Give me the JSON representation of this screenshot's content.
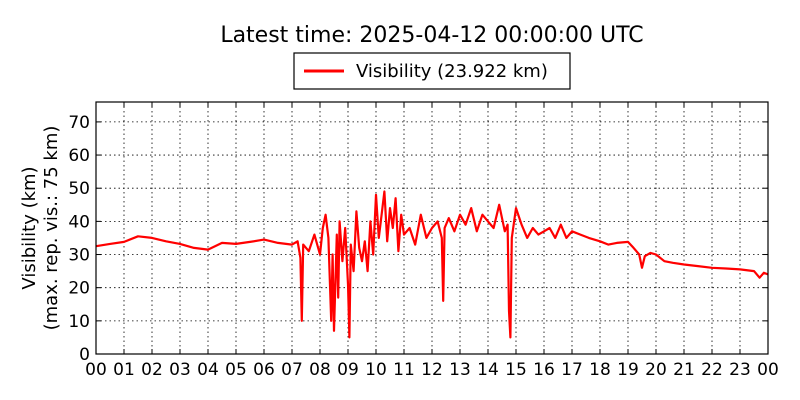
{
  "chart_data": {
    "type": "line",
    "title": "Latest time: 2025-04-12 00:00:00 UTC",
    "xlabel": "",
    "ylabel": [
      "Visibility (km)",
      "(max. rep. vis.: 75 km)"
    ],
    "xlim": [
      0,
      24
    ],
    "ylim": [
      0,
      76
    ],
    "grid": true,
    "legend_position": "top-center, above plot",
    "x_tick_labels": [
      "00",
      "01",
      "02",
      "03",
      "04",
      "05",
      "06",
      "07",
      "08",
      "09",
      "10",
      "11",
      "12",
      "13",
      "14",
      "15",
      "16",
      "17",
      "18",
      "19",
      "20",
      "21",
      "22",
      "23",
      "00"
    ],
    "y_ticks": [
      0,
      10,
      20,
      30,
      40,
      50,
      60,
      70
    ],
    "series": [
      {
        "name": "Visibility (23.922 km)",
        "color": "#ff0000",
        "x_hours": [
          0,
          0.5,
          1.0,
          1.5,
          2.0,
          2.5,
          3.0,
          3.5,
          4.0,
          4.5,
          5.0,
          5.5,
          6.0,
          6.5,
          7.0,
          7.2,
          7.3,
          7.35,
          7.4,
          7.6,
          7.8,
          8.0,
          8.1,
          8.2,
          8.3,
          8.4,
          8.45,
          8.5,
          8.6,
          8.65,
          8.7,
          8.8,
          8.9,
          9.0,
          9.05,
          9.1,
          9.2,
          9.3,
          9.4,
          9.5,
          9.6,
          9.7,
          9.8,
          9.9,
          10.0,
          10.1,
          10.2,
          10.3,
          10.4,
          10.5,
          10.6,
          10.7,
          10.8,
          10.9,
          11.0,
          11.2,
          11.4,
          11.6,
          11.8,
          12.0,
          12.2,
          12.35,
          12.4,
          12.45,
          12.6,
          12.8,
          13.0,
          13.2,
          13.4,
          13.6,
          13.8,
          14.0,
          14.2,
          14.4,
          14.6,
          14.7,
          14.75,
          14.8,
          14.85,
          14.9,
          15.0,
          15.2,
          15.4,
          15.6,
          15.8,
          16.0,
          16.2,
          16.4,
          16.6,
          16.8,
          17.0,
          17.3,
          17.6,
          18.0,
          18.3,
          18.6,
          19.0,
          19.2,
          19.4,
          19.5,
          19.6,
          19.8,
          20.0,
          20.3,
          20.6,
          21.0,
          21.5,
          22.0,
          22.5,
          23.0,
          23.5,
          23.7,
          23.85,
          24.0
        ],
        "values": [
          32.5,
          33.2,
          33.8,
          35.5,
          35.0,
          34.0,
          33.2,
          32.0,
          31.5,
          33.5,
          33.2,
          33.8,
          34.5,
          33.5,
          33.0,
          34.0,
          29.0,
          10.0,
          33.0,
          31.0,
          36.0,
          30.0,
          38.0,
          42.0,
          35.0,
          10.0,
          30.0,
          7.0,
          36.0,
          17.0,
          40.0,
          28.0,
          38.0,
          21.0,
          5.0,
          33.0,
          25.0,
          43.0,
          32.0,
          28.0,
          34.0,
          25.0,
          40.0,
          30.0,
          48.0,
          35.0,
          42.0,
          49.0,
          34.0,
          44.0,
          38.0,
          47.0,
          31.0,
          42.0,
          36.0,
          38.0,
          33.0,
          42.0,
          35.0,
          38.0,
          40.0,
          35.0,
          16.0,
          38.0,
          41.0,
          37.0,
          42.0,
          39.0,
          44.0,
          37.0,
          42.0,
          40.0,
          38.0,
          45.0,
          37.0,
          39.0,
          13.0,
          5.0,
          35.0,
          38.0,
          44.0,
          39.0,
          35.0,
          38.0,
          36.0,
          37.0,
          38.0,
          35.0,
          39.0,
          35.0,
          37.0,
          36.0,
          35.0,
          34.0,
          33.0,
          33.5,
          33.8,
          32.0,
          30.0,
          26.0,
          29.5,
          30.5,
          30.0,
          28.0,
          27.5,
          27.0,
          26.5,
          26.0,
          25.8,
          25.5,
          25.0,
          23.0,
          24.5,
          24.0
        ]
      }
    ]
  }
}
